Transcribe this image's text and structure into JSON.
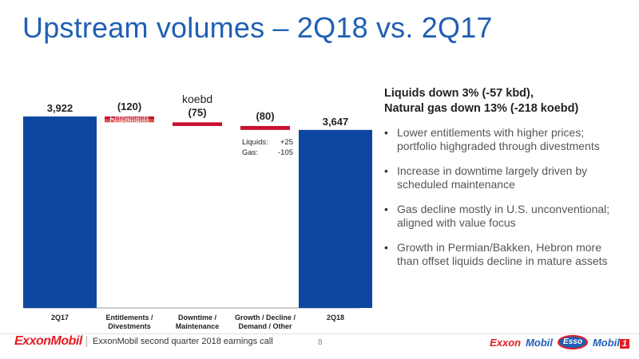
{
  "slide": {
    "title": "Upstream volumes – 2Q18 vs. 2Q17",
    "unit": "koebd",
    "page_number": "8",
    "footer_text": "ExxonMobil second quarter 2018 earnings call",
    "logo_left": "ExxonMobil",
    "logos_right": {
      "exxon": "Exxon",
      "mobil": "Mobil",
      "esso": "Esso",
      "mobil1": "Mobil",
      "one": "1"
    }
  },
  "colors": {
    "blue": "#0d47a1",
    "red": "#c8102e",
    "title_blue": "#1f5fb3"
  },
  "chart_data": {
    "type": "bar",
    "subtype": "waterfall",
    "unit": "koebd",
    "categories": [
      "2Q17",
      "Entitlements / Divestments",
      "Downtime / Maintenance",
      "Growth / Decline / Demand / Other",
      "2Q18"
    ],
    "category_lines": [
      [
        "2Q17"
      ],
      [
        "Entitlements /",
        "Divestments"
      ],
      [
        "Downtime /",
        "Maintenance"
      ],
      [
        "Growth / Decline /",
        "Demand / Other"
      ],
      [
        "2Q18"
      ]
    ],
    "bars": [
      {
        "category": "2Q17",
        "kind": "total",
        "start": 0,
        "end": 3922,
        "label": "3,922"
      },
      {
        "category": "Entitlements / Divestments",
        "kind": "decrease",
        "start": 3922,
        "end": 3802,
        "label": "(120)",
        "segments": [
          {
            "name": "Entitlements"
          },
          {
            "name": "Divestments"
          }
        ]
      },
      {
        "category": "Downtime / Maintenance",
        "kind": "decrease",
        "start": 3802,
        "end": 3727,
        "label": "(75)"
      },
      {
        "category": "Growth / Decline / Demand / Other",
        "kind": "decrease",
        "start": 3727,
        "end": 3647,
        "label": "(80)",
        "detail": [
          {
            "name": "Liquids:",
            "value": "+25"
          },
          {
            "name": "Gas:",
            "value": "-105"
          }
        ]
      },
      {
        "category": "2Q18",
        "kind": "total",
        "start": 0,
        "end": 3647,
        "label": "3,647"
      }
    ],
    "ylim": [
      0,
      3922
    ],
    "grid": false,
    "legend": "none"
  },
  "bullets": {
    "heading_line1": "Liquids down 3% (-57 kbd),",
    "heading_line2": "Natural gas down 13% (-218 koebd)",
    "items": [
      "Lower entitlements with higher prices; portfolio highgraded through divestments",
      "Increase in downtime largely driven by scheduled maintenance",
      "Gas decline mostly in U.S. unconventional; aligned with value focus",
      "Growth in Permian/Bakken, Hebron more than offset liquids decline in mature assets"
    ]
  }
}
